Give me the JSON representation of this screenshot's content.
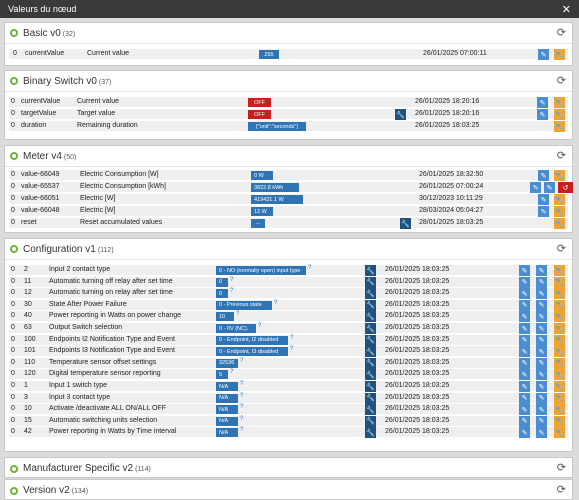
{
  "title": "Valeurs du nœud",
  "close_glyph": "✕",
  "refresh_glyph": "⟳",
  "panels": [
    {
      "title": "Basic v0",
      "count": "(32)",
      "rows": [
        {
          "idx": "0",
          "name": "currentValue",
          "label": "Current value",
          "value": "255",
          "time": "26/01/2025 07:00:11",
          "badge_color": "blue",
          "actions": [
            "edit",
            "wrench"
          ]
        }
      ]
    },
    {
      "title": "Binary Switch v0",
      "count": "(37)",
      "rows": [
        {
          "idx": "0",
          "name": "currentValue",
          "label": "Current value",
          "value": "OFF",
          "time": "26/01/2025 18:20:16",
          "badge_color": "red",
          "actions": [
            "edit",
            "wrench"
          ]
        },
        {
          "idx": "0",
          "name": "targetValue",
          "label": "Target value",
          "value": "OFF",
          "time": "26/01/2025 18:20:16",
          "badge_color": "red",
          "wrench": true,
          "actions": [
            "edit",
            "wrench"
          ]
        },
        {
          "idx": "0",
          "name": "duration",
          "label": "Remaining duration",
          "value": "{\"unit\":\"seconds\"}",
          "time": "26/01/2025 18:03:25",
          "badge_color": "blue",
          "actions": [
            "wrench"
          ]
        }
      ]
    },
    {
      "title": "Meter v4",
      "count": "(50)",
      "rows": [
        {
          "idx": "0",
          "name": "value-66049",
          "label": "Electric Consumption [W]",
          "value": "0 W",
          "time": "26/01/2025 18:32:50",
          "badge_color": "blue",
          "actions": [
            "edit",
            "wrench"
          ]
        },
        {
          "idx": "0",
          "name": "value-65537",
          "label": "Electric Consumption [kWh]",
          "value": "3822.8 kWh",
          "time": "26/01/2025 07:00:24",
          "badge_color": "blue",
          "actions": [
            "edit",
            "wrench",
            "reset"
          ]
        },
        {
          "idx": "0",
          "name": "value-66051",
          "label": "Electric [W]",
          "value": "419431.1 W",
          "time": "30/12/2023 10:11:29",
          "badge_color": "blue",
          "actions": [
            "edit",
            "wrench"
          ]
        },
        {
          "idx": "0",
          "name": "value-66048",
          "label": "Electric [W]",
          "value": "12 W",
          "time": "28/03/2024 05:04:27",
          "badge_color": "blue",
          "actions": [
            "edit",
            "wrench"
          ]
        },
        {
          "idx": "0",
          "name": "reset",
          "label": "Reset accumulated values",
          "value": "--",
          "time": "28/01/2025 18:03:25",
          "badge_color": "blue",
          "wrench": true,
          "actions": [
            "wrench"
          ]
        }
      ]
    },
    {
      "title": "Configuration v1",
      "count": "(112)",
      "rows": [
        {
          "idx": "0",
          "name": "2",
          "label": "Input 2 contact type",
          "value": "0 - NO (normally open) input type",
          "help": "?",
          "time": "26/01/2025 18:03:25",
          "actions": [
            "edit",
            "edit",
            "wrench"
          ]
        },
        {
          "idx": "0",
          "name": "11",
          "label": "Automatic turning off relay after set time",
          "value": "0",
          "help": "?",
          "time": "26/01/2025 18:03:25",
          "actions": [
            "edit",
            "edit",
            "wrench"
          ]
        },
        {
          "idx": "0",
          "name": "12",
          "label": "Automatic turning on relay after set time",
          "value": "0",
          "help": "?",
          "time": "26/01/2025 18:03:25",
          "actions": [
            "edit",
            "edit",
            "wrench"
          ]
        },
        {
          "idx": "0",
          "name": "30",
          "label": "State After Power Failure",
          "value": "0 - Previous state",
          "help": "?",
          "time": "26/01/2025 18:03:25",
          "actions": [
            "edit",
            "edit",
            "wrench"
          ]
        },
        {
          "idx": "0",
          "name": "40",
          "label": "Power reporting in Watts on power change",
          "value": "10",
          "help": "?",
          "time": "26/01/2025 18:03:25",
          "actions": [
            "edit",
            "edit",
            "wrench"
          ]
        },
        {
          "idx": "0",
          "name": "63",
          "label": "Output Switch selection",
          "value": "0 - 0V (NC).",
          "help": "?",
          "time": "26/01/2025 18:03:25",
          "actions": [
            "edit",
            "edit",
            "wrench"
          ]
        },
        {
          "idx": "0",
          "name": "100",
          "label": "Endpoints I2 Notification Type and Event",
          "value": "0 - Endpoint, I2 disabled",
          "help": "?",
          "time": "26/01/2025 18:03:25",
          "actions": [
            "edit",
            "edit",
            "wrench"
          ]
        },
        {
          "idx": "0",
          "name": "101",
          "label": "Endpoints I3 Notification Type and Event",
          "value": "0 - Endpoint, I3 disabled",
          "help": "?",
          "time": "26/01/2025 18:03:25",
          "actions": [
            "edit",
            "edit",
            "wrench"
          ]
        },
        {
          "idx": "0",
          "name": "110",
          "label": "Temperature sensor offset settings",
          "value": "32536",
          "help": "?",
          "time": "26/01/2025 18:03:25",
          "actions": [
            "edit",
            "edit",
            "wrench"
          ]
        },
        {
          "idx": "0",
          "name": "120",
          "label": "Digital temperature sensor reporting",
          "value": "5",
          "help": "?",
          "time": "26/01/2025 18:03:25",
          "actions": [
            "edit",
            "edit",
            "wrench"
          ]
        },
        {
          "idx": "0",
          "name": "1",
          "label": "Input 1 switch type",
          "value": "N/A",
          "help": "?",
          "time": "26/01/2025 18:03:25",
          "actions": [
            "edit",
            "edit",
            "wrench"
          ]
        },
        {
          "idx": "0",
          "name": "3",
          "label": "Input 3 contact type",
          "value": "N/A",
          "help": "?",
          "time": "26/01/2025 18:03:25",
          "actions": [
            "edit",
            "edit",
            "wrench"
          ]
        },
        {
          "idx": "0",
          "name": "10",
          "label": "Activate /deactivate ALL ON/ALL OFF",
          "value": "N/A",
          "help": "?",
          "time": "26/01/2025 18:03:25",
          "actions": [
            "edit",
            "edit",
            "wrench"
          ]
        },
        {
          "idx": "0",
          "name": "15",
          "label": "Automatic switching units selection",
          "value": "N/A",
          "help": "?",
          "time": "26/01/2025 18:03:25",
          "actions": [
            "edit",
            "edit",
            "wrench"
          ]
        },
        {
          "idx": "0",
          "name": "42",
          "label": "Power reporting in Watts by Time interval",
          "value": "N/A",
          "help": "?",
          "time": "26/01/2025 18:03:25",
          "actions": [
            "edit",
            "edit",
            "wrench"
          ]
        }
      ]
    },
    {
      "title": "Manufacturer Specific v2",
      "count": "(114)",
      "rows": []
    },
    {
      "title": "Version v2",
      "count": "(134)",
      "rows": []
    }
  ],
  "icons": {
    "edit": "pencil-icon",
    "wrench": "wrench-icon",
    "reset": "reset-icon",
    "refresh": "refresh-icon"
  }
}
